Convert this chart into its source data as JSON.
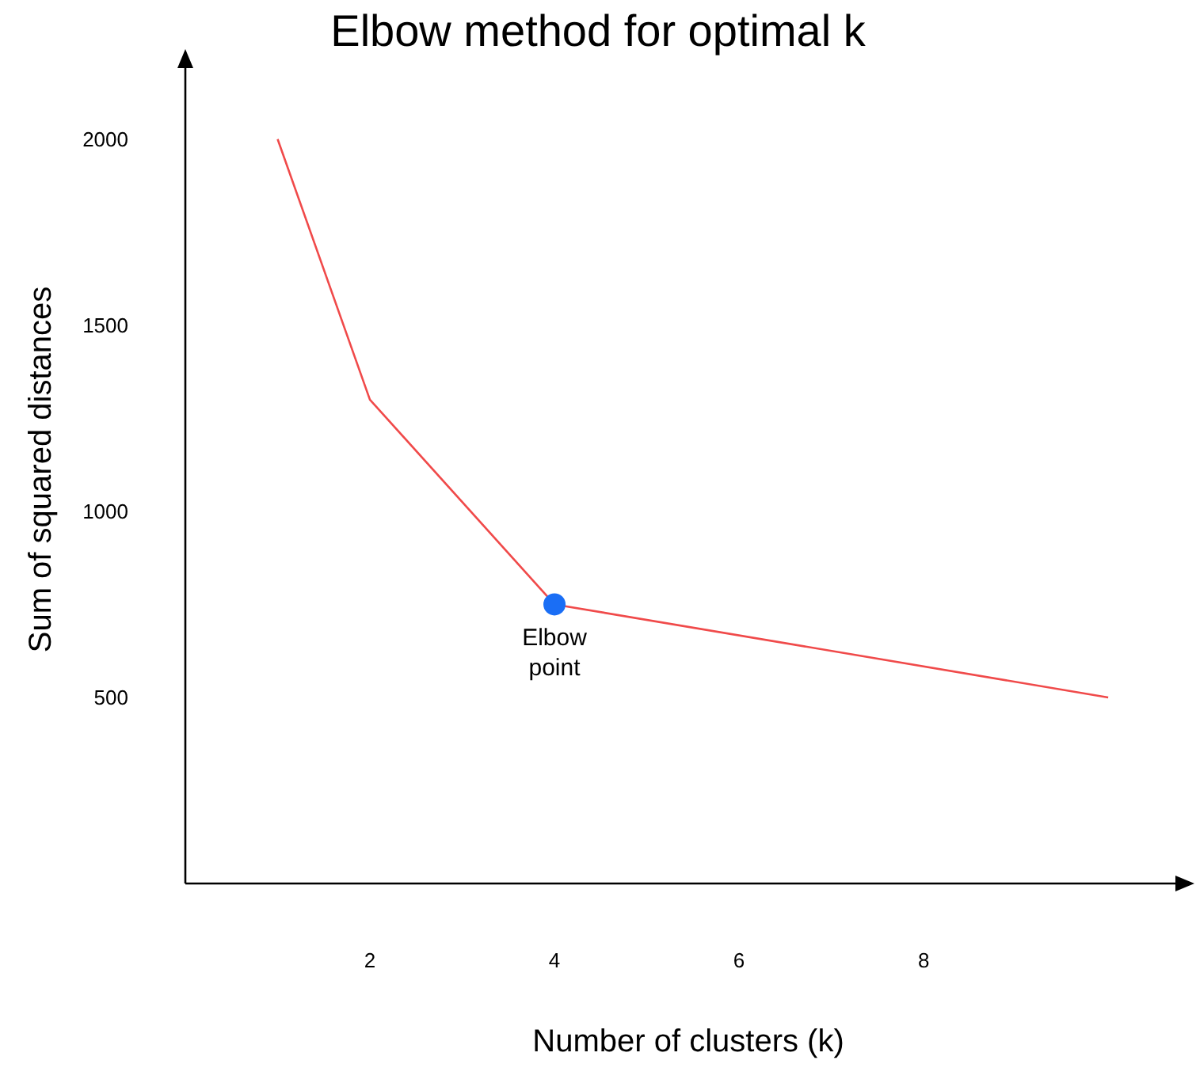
{
  "chart_data": {
    "type": "line",
    "title": "Elbow method for optimal k",
    "xlabel": "Number of clusters (k)",
    "ylabel": "Sum of squared distances",
    "x": [
      1,
      2,
      4,
      10
    ],
    "series": [
      {
        "color": "#f04a4a",
        "values": [
          2000,
          1300,
          750,
          500
        ]
      },
      {
        "type": "scatter",
        "color": "#1a6ef5",
        "marker": "circle",
        "x": [
          4
        ],
        "values": [
          750
        ]
      }
    ],
    "annotations": [
      {
        "text": "Elbow point",
        "x": 4,
        "y": 750
      }
    ],
    "xlim": [
      0,
      10.9
    ],
    "xticks": [
      2,
      4,
      6,
      8
    ],
    "ylim": [
      0,
      2225
    ],
    "yticks": [
      500,
      1000,
      1500,
      2000
    ],
    "grid": false,
    "marker": "none"
  }
}
